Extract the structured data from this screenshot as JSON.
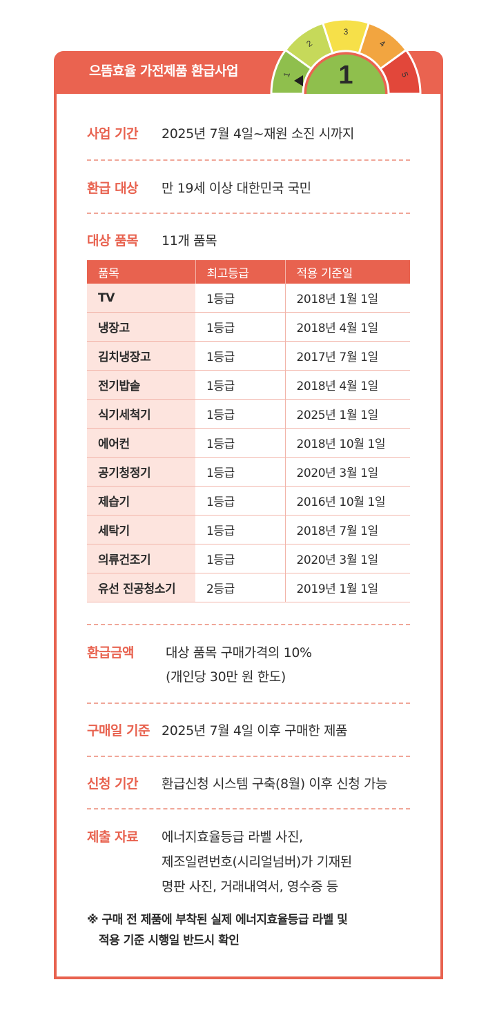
{
  "header": {
    "title": "으뜸효율 가전제품 환급사업",
    "gauge": {
      "current_grade": "1",
      "segments": [
        "1",
        "2",
        "3",
        "4",
        "5"
      ],
      "colors": [
        "#8fbf4d",
        "#c6d95a",
        "#f6e049",
        "#f2a540",
        "#e2473a"
      ]
    }
  },
  "sections": {
    "period": {
      "label": "사업 기간",
      "value": "2025년 7월 4일~재원 소진 시까지"
    },
    "target": {
      "label": "환급 대상",
      "value": "만 19세 이상 대한민국 국민"
    },
    "items": {
      "label": "대상 품목",
      "value": "11개 품목"
    },
    "amount": {
      "label": "환급금액",
      "value_line1": "대상 품목 구매가격의 10%",
      "value_line2": "(개인당 30만 원 한도)"
    },
    "purchase_date": {
      "label": "구매일 기준",
      "value": "2025년 7월 4일 이후 구매한 제품"
    },
    "apply_period": {
      "label": "신청 기간",
      "value": "환급신청 시스템 구축(8월) 이후 신청 가능"
    },
    "documents": {
      "label": "제출 자료",
      "line1": "에너지효율등급 라벨 사진,",
      "line2": "제조일련번호(시리얼넘버)가 기재된",
      "line3": "명판 사진, 거래내역서, 영수증 등"
    }
  },
  "table": {
    "headers": [
      "품목",
      "최고등급",
      "적용 기준일"
    ],
    "rows": [
      [
        "TV",
        "1등급",
        "2018년 1월 1일"
      ],
      [
        "냉장고",
        "1등급",
        "2018년 4월 1일"
      ],
      [
        "김치냉장고",
        "1등급",
        "2017년 7월 1일"
      ],
      [
        "전기밥솥",
        "1등급",
        "2018년 4월 1일"
      ],
      [
        "식기세척기",
        "1등급",
        "2025년 1월 1일"
      ],
      [
        "에어컨",
        "1등급",
        "2018년 10월 1일"
      ],
      [
        "공기청정기",
        "1등급",
        "2020년 3월 1일"
      ],
      [
        "제습기",
        "1등급",
        "2016년 10월 1일"
      ],
      [
        "세탁기",
        "1등급",
        "2018년 7월 1일"
      ],
      [
        "의류건조기",
        "1등급",
        "2020년 3월 1일"
      ],
      [
        "유선 진공청소기",
        "2등급",
        "2019년 1월 1일"
      ]
    ]
  },
  "note": {
    "line1": "※ 구매 전 제품에 부착된 실제 에너지효율등급 라벨 및",
    "line2": "적용 기준 시행일 반드시 확인"
  }
}
